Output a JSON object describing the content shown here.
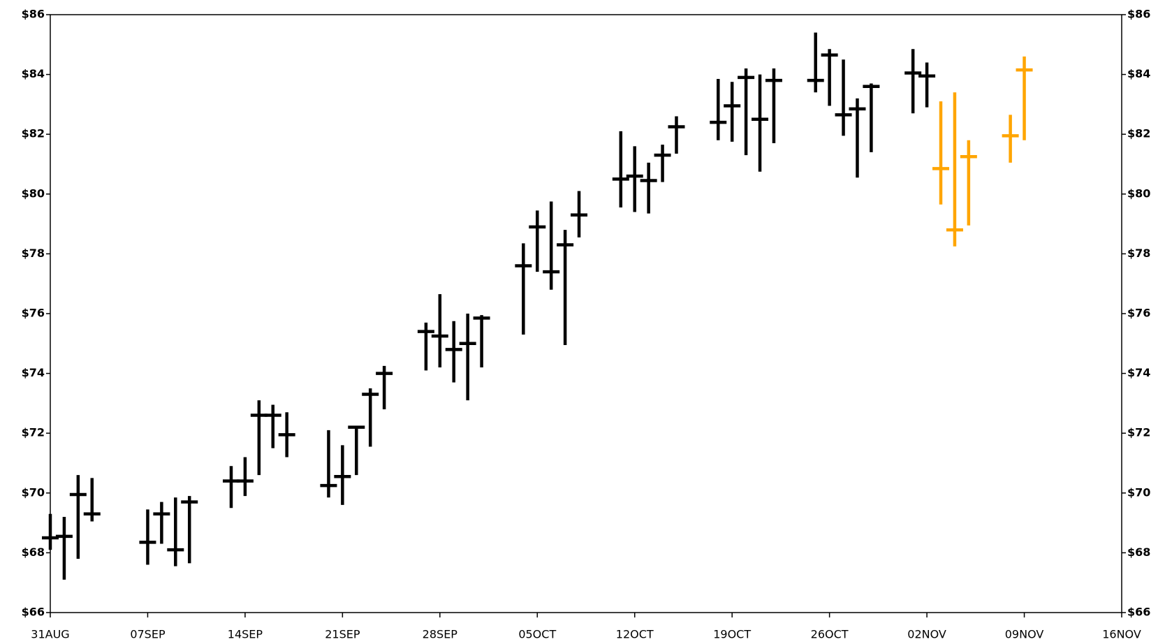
{
  "chart_data": {
    "type": "ohlc",
    "xlim": [
      "31AUG",
      "16NOV"
    ],
    "xticks": [
      "31AUG",
      "07SEP",
      "14SEP",
      "21SEP",
      "28SEP",
      "05OCT",
      "12OCT",
      "19OCT",
      "26OCT",
      "02NOV",
      "09NOV",
      "16NOV"
    ],
    "ylim": [
      66,
      86
    ],
    "yticks": [
      {
        "value": 66,
        "label": "$66"
      },
      {
        "value": 68,
        "label": "$68"
      },
      {
        "value": 70,
        "label": "$70"
      },
      {
        "value": 72,
        "label": "$72"
      },
      {
        "value": 74,
        "label": "$74"
      },
      {
        "value": 76,
        "label": "$76"
      },
      {
        "value": 78,
        "label": "$78"
      },
      {
        "value": 80,
        "label": "$80"
      },
      {
        "value": 82,
        "label": "$82"
      },
      {
        "value": 84,
        "label": "$84"
      },
      {
        "value": 86,
        "label": "$86"
      }
    ],
    "series": [
      {
        "color": "#000000",
        "x": [
          "31AUG",
          "01SEP",
          "02SEP",
          "03SEP",
          "07SEP",
          "08SEP",
          "09SEP",
          "10SEP",
          "13SEP",
          "14SEP",
          "15SEP",
          "16SEP",
          "17SEP",
          "20SEP",
          "21SEP",
          "22SEP",
          "23SEP",
          "24SEP",
          "27SEP",
          "28SEP",
          "29SEP",
          "30SEP",
          "01OCT",
          "04OCT",
          "05OCT",
          "06OCT",
          "07OCT",
          "08OCT",
          "11OCT",
          "12OCT",
          "13OCT",
          "14OCT",
          "15OCT",
          "18OCT",
          "19OCT",
          "20OCT",
          "21OCT",
          "22OCT",
          "25OCT",
          "26OCT",
          "27OCT",
          "28OCT",
          "29OCT",
          "01NOV",
          "02NOV"
        ],
        "high": [
          69.3,
          69.2,
          70.6,
          70.5,
          69.45,
          69.7,
          69.85,
          69.9,
          70.9,
          71.2,
          73.1,
          72.95,
          72.7,
          72.1,
          71.6,
          72.25,
          73.5,
          74.25,
          75.7,
          76.65,
          75.75,
          76.0,
          75.95,
          78.35,
          79.45,
          79.75,
          78.8,
          80.1,
          82.1,
          81.6,
          81.05,
          81.65,
          82.6,
          83.85,
          83.75,
          84.2,
          84.0,
          84.2,
          85.4,
          84.85,
          84.5,
          83.2,
          83.7,
          84.85,
          84.4
        ],
        "low": [
          68.1,
          67.1,
          67.8,
          69.05,
          67.6,
          68.3,
          67.55,
          67.65,
          69.5,
          69.9,
          70.6,
          71.5,
          71.2,
          69.85,
          69.6,
          70.6,
          71.55,
          72.8,
          74.1,
          74.2,
          73.7,
          73.1,
          74.2,
          75.3,
          77.4,
          76.8,
          74.95,
          78.55,
          79.55,
          79.4,
          79.35,
          80.4,
          81.35,
          81.8,
          81.75,
          81.3,
          80.75,
          81.7,
          83.4,
          82.95,
          81.95,
          80.55,
          81.4,
          82.7,
          82.9
        ],
        "close": [
          68.5,
          68.55,
          69.95,
          69.3,
          68.35,
          69.3,
          68.1,
          69.7,
          70.4,
          70.4,
          72.6,
          72.6,
          71.95,
          70.25,
          70.55,
          72.2,
          73.3,
          74.0,
          75.4,
          75.25,
          74.8,
          75.0,
          75.85,
          77.6,
          78.9,
          77.4,
          78.3,
          79.3,
          80.5,
          80.6,
          80.45,
          81.3,
          82.25,
          82.4,
          82.95,
          83.9,
          82.5,
          83.8,
          83.8,
          84.65,
          82.65,
          82.85,
          83.6,
          84.05,
          83.95
        ]
      },
      {
        "color": "#ffa500",
        "x": [
          "03NOV",
          "04NOV",
          "05NOV",
          "08NOV",
          "09NOV"
        ],
        "high": [
          83.1,
          83.4,
          81.8,
          82.65,
          84.6
        ],
        "low": [
          79.65,
          78.25,
          78.95,
          81.05,
          81.8
        ],
        "close": [
          80.85,
          78.8,
          81.25,
          81.95,
          84.15
        ]
      }
    ]
  }
}
